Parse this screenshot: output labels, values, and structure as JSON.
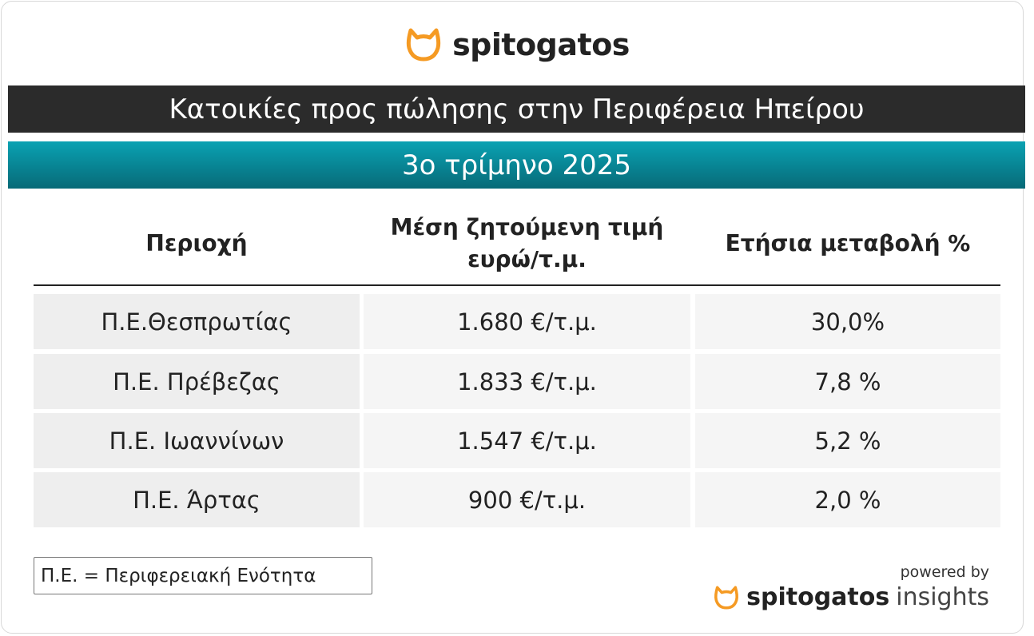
{
  "logo": {
    "brand": "spitogatos"
  },
  "title": "Κατοικίες προς πώλησης στην Περιφέρεια Ηπείρου",
  "subtitle": "3ο τρίμηνο 2025",
  "table": {
    "columns": [
      [
        "Περιοχή"
      ],
      [
        "Μέση ζητούμενη τιμή",
        "ευρώ/τ.μ."
      ],
      [
        "Ετήσια μεταβολή %"
      ]
    ],
    "rows": [
      [
        "Π.Ε.Θεσπρωτίας",
        "1.680 €/τ.μ.",
        "30,0%"
      ],
      [
        "Π.Ε. Πρέβεζας",
        "1.833 €/τ.μ.",
        "7,8 %"
      ],
      [
        "Π.Ε. Ιωαννίνων",
        "1.547 €/τ.μ.",
        "5,2 %"
      ],
      [
        "Π.Ε. Άρτας",
        "900 €/τ.μ.",
        "2,0 %"
      ]
    ]
  },
  "footnote": "Π.Ε. = Περιφερειακή Ενότητα",
  "footer": {
    "powered_by": "powered by",
    "brand": "spitogatos",
    "product": "insights"
  }
}
